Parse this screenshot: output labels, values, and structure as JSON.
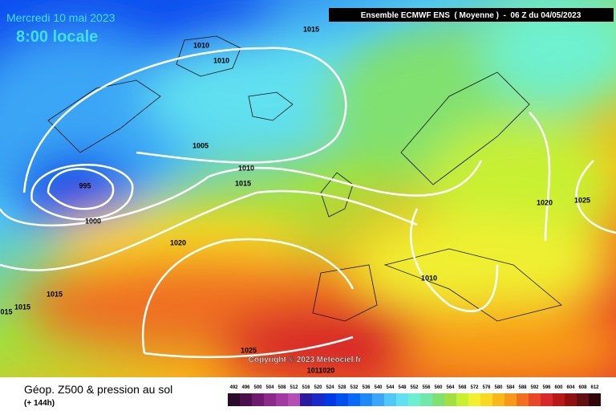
{
  "header": {
    "date": "Mercredi 10 mai 2023",
    "time": "8:00 locale",
    "model": "Ensemble ECMWF ENS  ( Moyenne )  -  06 Z du 04/05/2023"
  },
  "map": {
    "isobar_labels": [
      "1015",
      "1010",
      "1010",
      "1005",
      "995",
      "1000",
      "1010",
      "1015",
      "1020",
      "1015",
      "1015",
      "015",
      "1025",
      "1020",
      "1025",
      "1010",
      "1011020"
    ],
    "copyright": "Copyright © 2023 Meteociel.fr"
  },
  "footer": {
    "title": "Géop. Z500 & pression au sol",
    "subtitle": "(+ 144h)",
    "scale": {
      "labels": [
        492,
        496,
        500,
        504,
        508,
        512,
        516,
        520,
        524,
        528,
        532,
        536,
        540,
        544,
        548,
        552,
        556,
        560,
        564,
        568,
        572,
        576,
        580,
        584,
        588,
        592,
        596,
        600,
        604,
        608,
        612
      ],
      "colors": [
        "#2a0a2a",
        "#4b0f4b",
        "#6e1a6e",
        "#8b2a8b",
        "#a23aa2",
        "#b44eb4",
        "#2a1aa0",
        "#1a2ac8",
        "#0038e6",
        "#0050f0",
        "#0a6af5",
        "#1e88f5",
        "#3aa6f5",
        "#50c8f5",
        "#60e0f0",
        "#6ef0d0",
        "#70e8a8",
        "#80e070",
        "#a0e040",
        "#c8f030",
        "#f0f030",
        "#f8d820",
        "#f8b818",
        "#f89818",
        "#f07020",
        "#e84828",
        "#d82828",
        "#b81818",
        "#901010",
        "#601010",
        "#300808"
      ]
    }
  }
}
